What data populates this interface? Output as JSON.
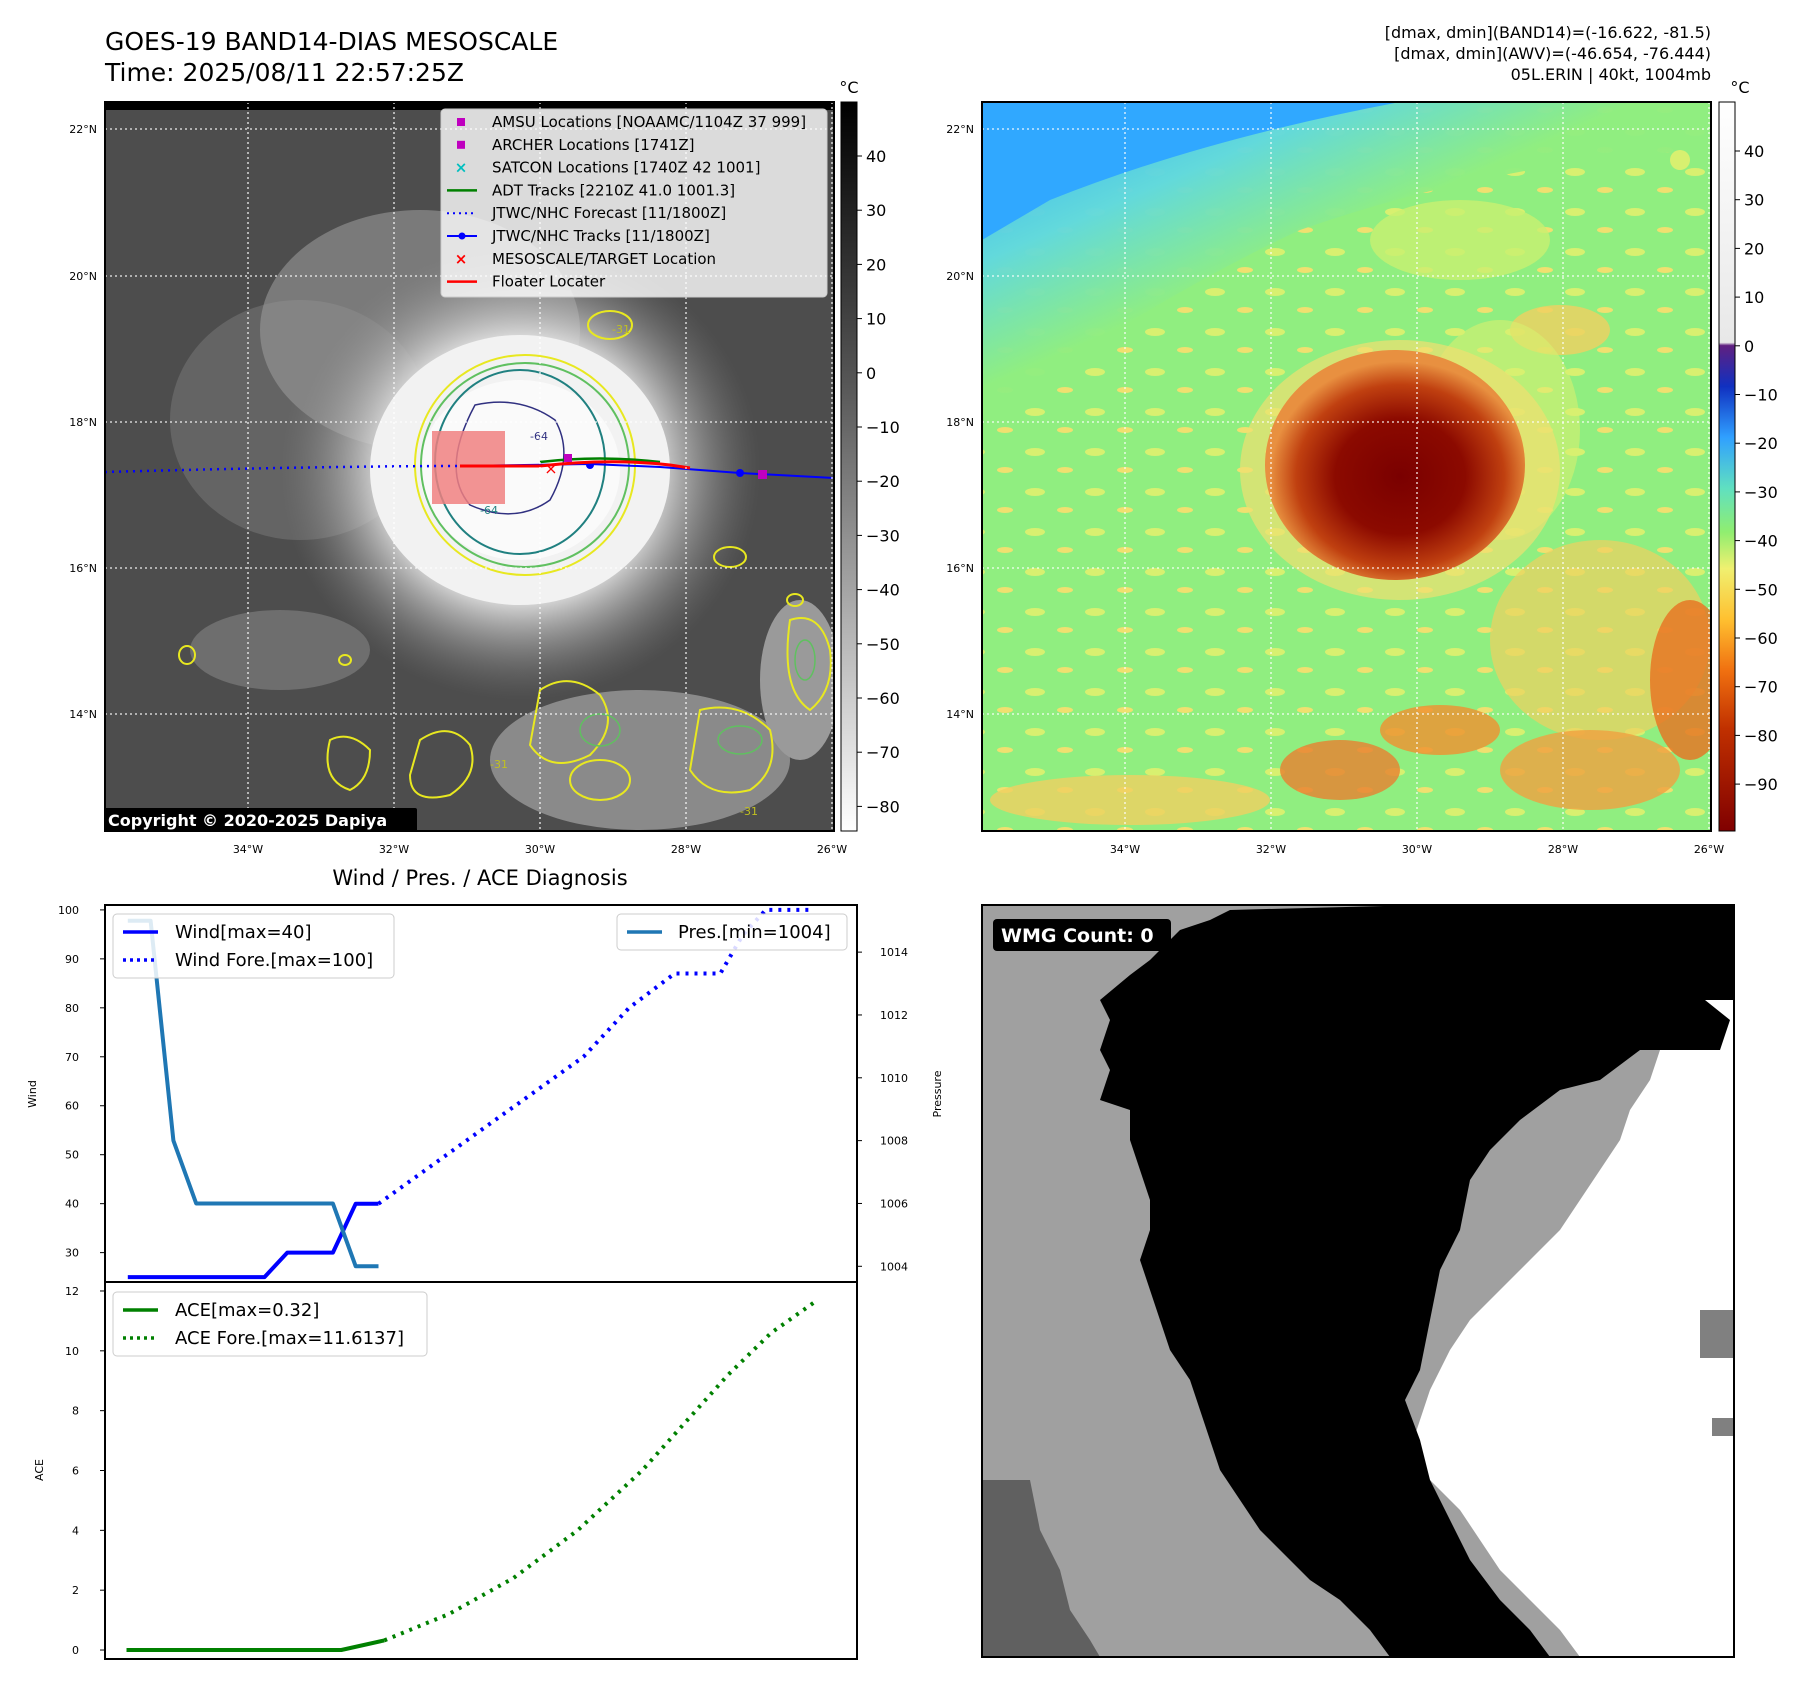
{
  "header": {
    "title_line1": "GOES-19 BAND14-DIAS MESOSCALE",
    "title_line2": "Time: 2025/08/11 22:57:25Z",
    "info_line1": "[dmax, dmin](BAND14)=(-16.622, -81.5)",
    "info_line2": "[dmax, dmin](AWV)=(-46.654, -76.444)",
    "info_line3": "05L.ERIN | 40kt, 1004mb"
  },
  "map_axes": {
    "lat_labels": [
      "22°N",
      "20°N",
      "18°N",
      "16°N",
      "14°N"
    ],
    "lon_labels": [
      "34°W",
      "32°W",
      "30°W",
      "28°W",
      "26°W"
    ],
    "copyright": "Copyright © 2020-2025 Dapiya",
    "contour_labels": [
      "-64",
      "-31",
      "-31",
      "-31",
      "-64"
    ]
  },
  "left_colorbar": {
    "unit": "°C",
    "ticks": [
      "40",
      "30",
      "20",
      "10",
      "0",
      "−10",
      "−20",
      "−30",
      "−40",
      "−50",
      "−60",
      "−70",
      "−80"
    ]
  },
  "right_colorbar": {
    "unit": "°C",
    "ticks": [
      "40",
      "30",
      "20",
      "10",
      "0",
      "−10",
      "−20",
      "−30",
      "−40",
      "−50",
      "−60",
      "−70",
      "−80",
      "−90"
    ]
  },
  "map_legend": [
    {
      "label": "AMSU Locations [NOAAMC/1104Z 37 999]",
      "marker": "square",
      "color": "#bf00bf"
    },
    {
      "label": "ARCHER Locations [1741Z]",
      "marker": "square",
      "color": "#bf00bf"
    },
    {
      "label": "SATCON Locations [1740Z 42 1001]",
      "marker": "x",
      "color": "#00bfbf"
    },
    {
      "label": "ADT Tracks [2210Z 41.0 1001.3]",
      "marker": "line",
      "color": "#008000"
    },
    {
      "label": "JTWC/NHC Forecast [11/1800Z]",
      "marker": "dotted",
      "color": "#0000ff"
    },
    {
      "label": "JTWC/NHC Tracks [11/1800Z]",
      "marker": "line-dot",
      "color": "#0000ff"
    },
    {
      "label": "MESOSCALE/TARGET Location",
      "marker": "x",
      "color": "#ff0000"
    },
    {
      "label": "Floater Locater",
      "marker": "line",
      "color": "#ff0000"
    }
  ],
  "wmg": {
    "label": "WMG Count: 0"
  },
  "diagnosis": {
    "title": "Wind / Pres. / ACE Diagnosis",
    "wind_ylabel": "Wind",
    "pres_ylabel": "Pressure",
    "ace_ylabel": "ACE",
    "legend_wind": "Wind[max=40]",
    "legend_wind_fore": "Wind Fore.[max=100]",
    "legend_pres": "Pres.[min=1004]",
    "legend_ace": "ACE[max=0.32]",
    "legend_ace_fore": "ACE Fore.[max=11.6137]"
  },
  "chart_data": [
    {
      "type": "line",
      "ylabel": "Wind",
      "ylim": [
        24,
        101
      ],
      "xlim": [
        -1,
        32
      ],
      "y_ticks": [
        "30",
        "40",
        "50",
        "60",
        "70",
        "80",
        "90",
        "100"
      ],
      "series": [
        {
          "name": "Wind[max=40]",
          "style": "solid",
          "color": "#0000ff",
          "x": [
            0,
            1,
            2,
            3,
            4,
            5,
            6,
            7,
            8,
            9,
            10,
            11
          ],
          "y": [
            25,
            25,
            25,
            25,
            25,
            25,
            25,
            30,
            30,
            30,
            40,
            40
          ]
        },
        {
          "name": "Wind Fore.[max=100]",
          "style": "dotted",
          "color": "#0000ff",
          "x": [
            11,
            14,
            17,
            20,
            22,
            24,
            26,
            27,
            28,
            30
          ],
          "y": [
            40,
            50,
            60,
            70,
            80,
            87,
            87,
            95,
            100,
            100
          ]
        }
      ]
    },
    {
      "type": "line",
      "ylabel": "Pressure",
      "ylim": [
        1003.5,
        1015.5
      ],
      "y_ticks": [
        "1004",
        "1006",
        "1008",
        "1010",
        "1012",
        "1014"
      ],
      "series": [
        {
          "name": "Pres.[min=1004]",
          "style": "solid",
          "color": "#1f77b4",
          "x": [
            0,
            1,
            2,
            3,
            4,
            5,
            6,
            7,
            8,
            9,
            10,
            11
          ],
          "y": [
            1015,
            1015,
            1008,
            1006,
            1006,
            1006,
            1006,
            1006,
            1006,
            1006,
            1004,
            1004
          ]
        }
      ]
    },
    {
      "type": "line",
      "ylabel": "ACE",
      "ylim": [
        -0.3,
        12.3
      ],
      "y_ticks": [
        "0",
        "2",
        "4",
        "6",
        "8",
        "10",
        "12"
      ],
      "series": [
        {
          "name": "ACE[max=0.32]",
          "style": "solid",
          "color": "#008000",
          "x": [
            0,
            2,
            4,
            6,
            8,
            10,
            12
          ],
          "y": [
            0,
            0,
            0,
            0,
            0,
            0,
            0.32
          ]
        },
        {
          "name": "ACE Fore.[max=11.6137]",
          "style": "dotted",
          "color": "#008000",
          "x": [
            12,
            15,
            18,
            21,
            24,
            26,
            28,
            30,
            32
          ],
          "y": [
            0.32,
            1.2,
            2.4,
            4.0,
            6.0,
            7.6,
            9.2,
            10.6,
            11.6137
          ]
        }
      ]
    }
  ]
}
